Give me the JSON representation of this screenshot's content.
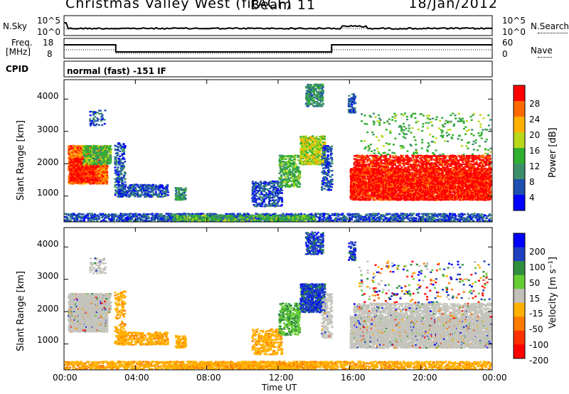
{
  "header": {
    "station": "Christmas Valley West (fitACF)",
    "beam": "Beam 11",
    "date": "18/Jan/2012"
  },
  "top_panels": {
    "nsky_label": "N.Sky",
    "nsky_ticks": [
      "10^5",
      "10^0"
    ],
    "nsearch_label": "N.Search",
    "nsearch_ticks": [
      "10^5",
      "10^0"
    ],
    "freq_label": "Freq.",
    "freq_unit": "[MHz]",
    "freq_ticks": [
      "18",
      "8"
    ],
    "nave_label": "Nave",
    "nave_ticks": [
      "60",
      "0"
    ],
    "cpid_label": "CPID",
    "cpid_text": "normal (fast) -151 IF"
  },
  "colors": {
    "power": [
      "#0000ff",
      "#1f4fb0",
      "#3d8f6a",
      "#2fb02f",
      "#b8d81a",
      "#ffb000",
      "#ff6a00",
      "#ff0000"
    ],
    "velocity": [
      "#0000ff",
      "#1f3fbf",
      "#2f8f3f",
      "#66cc33",
      "#c0c0b8",
      "#ffb000",
      "#ff7a00",
      "#ff3000",
      "#ff0000"
    ],
    "grey": "#c4c4bc"
  },
  "chart_data": [
    {
      "type": "heatmap",
      "name": "Power",
      "ylabel": "Slant Range [km]",
      "xlabel": "Time UT",
      "xticks": [
        "00:00",
        "04:00",
        "08:00",
        "12:00",
        "16:00",
        "20:00",
        "00:00"
      ],
      "yticks": [
        "1000",
        "2000",
        "3000",
        "4000"
      ],
      "ylim": [
        200,
        4600
      ],
      "xlim_hours": [
        0,
        24
      ],
      "colorbar": {
        "label": "Power [dB]",
        "ticks": [
          "28",
          "24",
          "20",
          "16",
          "12",
          "8",
          "4"
        ],
        "range": [
          0,
          32
        ]
      }
    },
    {
      "type": "heatmap",
      "name": "Velocity",
      "ylabel": "Slant Range [km]",
      "xlabel": "Time UT",
      "xticks": [
        "00:00",
        "04:00",
        "08:00",
        "12:00",
        "16:00",
        "20:00",
        "00:00"
      ],
      "yticks": [
        "1000",
        "2000",
        "3000",
        "4000"
      ],
      "ylim": [
        200,
        4600
      ],
      "xlim_hours": [
        0,
        24
      ],
      "colorbar": {
        "label": "Velocity [m s⁻¹]",
        "ticks": [
          "200",
          "100",
          "50",
          "15",
          "-15",
          "-50",
          "-100",
          "-200"
        ],
        "range": [
          -250,
          250
        ]
      }
    }
  ],
  "footer": {
    "xlabel": "Time UT"
  }
}
